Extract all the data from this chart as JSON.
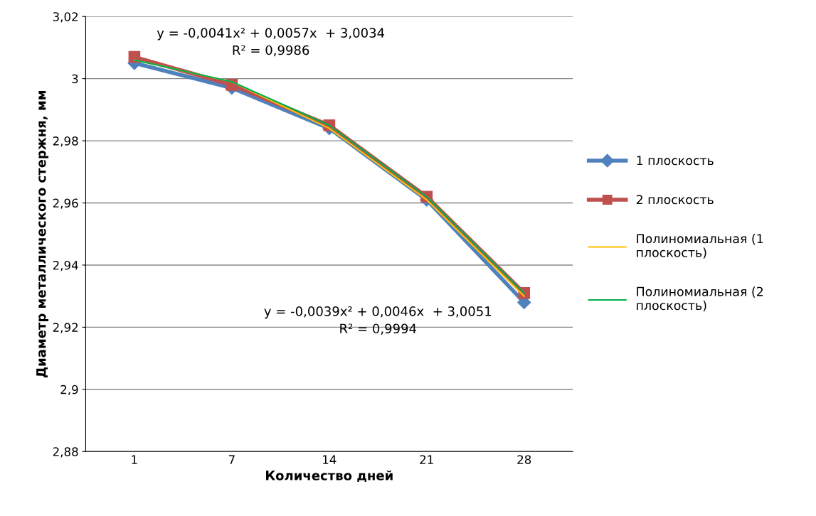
{
  "chart_data": {
    "type": "line",
    "xlabel": "Количество дней",
    "ylabel": "Диаметр металлического стержня, мм",
    "categories": [
      "1",
      "7",
      "14",
      "21",
      "28"
    ],
    "series": [
      {
        "name": "1 плоскость",
        "color": "#4f81bd",
        "marker": "diamond",
        "values": [
          3.005,
          2.997,
          2.984,
          2.961,
          2.928
        ]
      },
      {
        "name": "2 плоскость",
        "color": "#c0504d",
        "marker": "square",
        "values": [
          3.007,
          2.998,
          2.985,
          2.962,
          2.931
        ]
      },
      {
        "name": "Полиномиальная (1 плоскость)",
        "color": "#ffc000",
        "marker": "none",
        "values": [
          3.006,
          2.999,
          2.984,
          2.961,
          2.93
        ]
      },
      {
        "name": "Полиномиальная (2 плоскость)",
        "color": "#00b050",
        "marker": "none",
        "values": [
          3.006,
          2.999,
          2.985,
          2.962,
          2.931
        ]
      }
    ],
    "ylim": [
      2.88,
      3.02
    ],
    "yticks": [
      {
        "value": 2.88,
        "label": "2,88"
      },
      {
        "value": 2.9,
        "label": "2,9"
      },
      {
        "value": 2.92,
        "label": "2,92"
      },
      {
        "value": 2.94,
        "label": "2,94"
      },
      {
        "value": 2.96,
        "label": "2,96"
      },
      {
        "value": 2.98,
        "label": "2,98"
      },
      3,
      {
        "value": 3.02,
        "label": "3,02"
      }
    ],
    "annotations": [
      "y = -0,0041x² + 0,0057x  + 3,0034\nR² = 0,9986",
      "y = -0,0039x² + 0,0046x  + 3,0051\nR² = 0,9994"
    ],
    "grid": "y",
    "legend": "right"
  }
}
